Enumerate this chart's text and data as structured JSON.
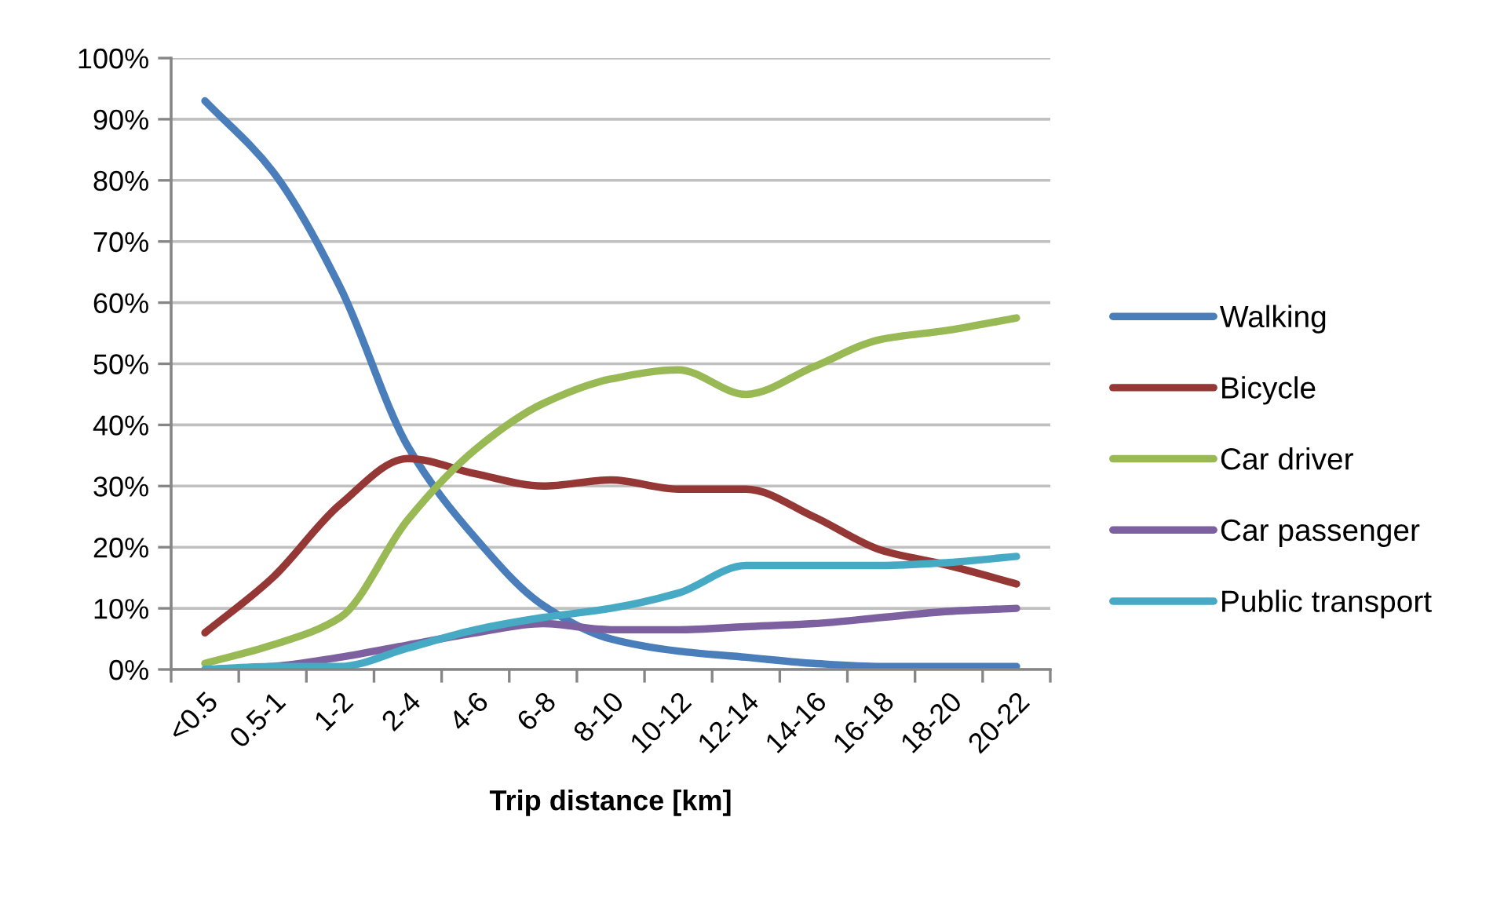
{
  "chart_data": {
    "type": "line",
    "xlabel": "Trip distance [km]",
    "categories": [
      "<0.5",
      "0.5-1",
      "1-2",
      "2-4",
      "4-6",
      "6-8",
      "8-10",
      "10-12",
      "12-14",
      "14-16",
      "16-18",
      "18-20",
      "20-22"
    ],
    "series": [
      {
        "name": "Walking",
        "color": "#4a7ebb",
        "values": [
          93,
          81.5,
          62.5,
          36.5,
          21.5,
          10.5,
          5,
          3,
          2,
          1,
          0.5,
          0.5,
          0.5
        ]
      },
      {
        "name": "Bicycle",
        "color": "#953735",
        "values": [
          6,
          15,
          27,
          34.5,
          32,
          30,
          31,
          29.5,
          29.5,
          25,
          19.5,
          17,
          14
        ]
      },
      {
        "name": "Car driver",
        "color": "#98b954",
        "values": [
          1,
          4,
          8.5,
          24.5,
          36,
          43.5,
          47.5,
          49,
          45,
          49.5,
          54,
          55.5,
          57.5
        ]
      },
      {
        "name": "Car passenger",
        "color": "#7d60a0",
        "values": [
          0,
          0.5,
          2,
          4,
          6,
          7.5,
          6.5,
          6.5,
          7,
          7.5,
          8.5,
          9.5,
          10
        ]
      },
      {
        "name": "Public transport",
        "color": "#46aac5",
        "values": [
          0,
          0.5,
          0.5,
          3.5,
          6.5,
          8.5,
          10,
          12.5,
          17,
          17,
          17,
          17.5,
          18.5
        ]
      }
    ],
    "ylim": [
      0,
      100
    ],
    "yticks": [
      {
        "value": 0,
        "label": "0%"
      },
      {
        "value": 10,
        "label": "10%"
      },
      {
        "value": 20,
        "label": "20%"
      },
      {
        "value": 30,
        "label": "30%"
      },
      {
        "value": 40,
        "label": "40%"
      },
      {
        "value": 50,
        "label": "50%"
      },
      {
        "value": 60,
        "label": "60%"
      },
      {
        "value": 70,
        "label": "70%"
      },
      {
        "value": 80,
        "label": "80%"
      },
      {
        "value": 90,
        "label": "90%"
      },
      {
        "value": 100,
        "label": "100%"
      }
    ],
    "grid": "y",
    "legend": "right",
    "line_style": "solid"
  }
}
